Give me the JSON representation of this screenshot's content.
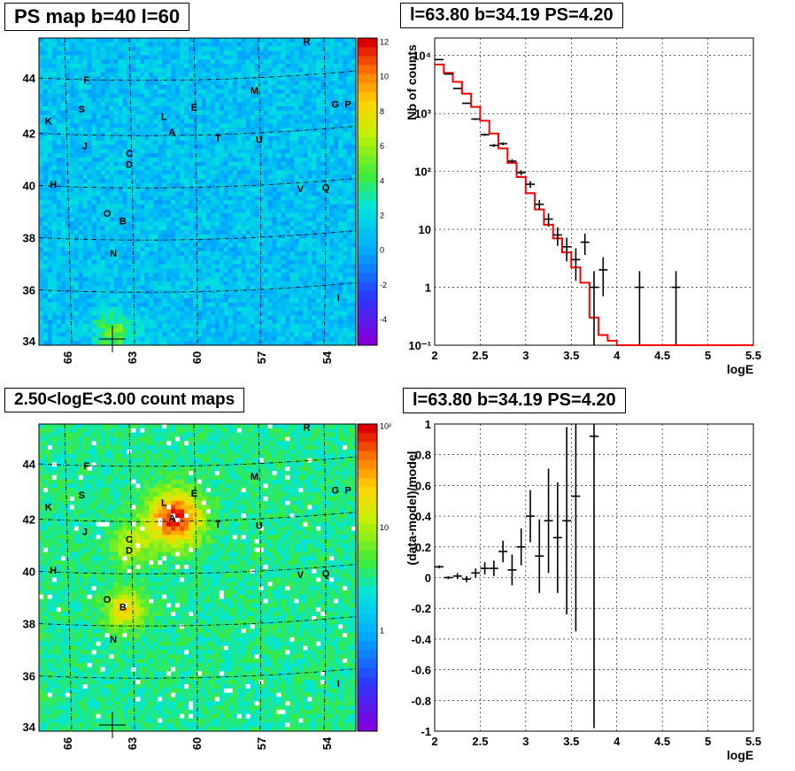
{
  "panels": {
    "map_title": "PS map b=40 l=60",
    "spec_title": "l=63.80 b=34.19 PS=4.20",
    "count_title": "2.50<logE<3.00 count maps",
    "resid_title": "l=63.80 b=34.19 PS=4.20"
  },
  "map_axes": {
    "x_ticks": [
      "66",
      "63",
      "60",
      "57",
      "54"
    ],
    "y_ticks": [
      "44",
      "42",
      "40",
      "38",
      "36",
      "34"
    ]
  },
  "source_labels": [
    "R",
    "F",
    "M",
    "S",
    "L",
    "E",
    "G",
    "P",
    "K",
    "A",
    "T",
    "U",
    "J",
    "C",
    "D",
    "H",
    "V",
    "Q",
    "O",
    "B",
    "N",
    "I"
  ],
  "colorbar_ps": [
    "12",
    "10",
    "8",
    "6",
    "4",
    "2",
    "0",
    "-2",
    "-4"
  ],
  "colorbar_count": [
    "10²",
    "10",
    "1"
  ],
  "colors": {
    "model_line": "#ff0000",
    "data": "#000000"
  },
  "chart_data": [
    {
      "type": "heatmap",
      "title": "PS map b=40 l=60",
      "xlabel": "",
      "ylabel": "",
      "x_ticks": [
        66,
        63,
        60,
        57,
        54
      ],
      "y_ticks": [
        44,
        42,
        40,
        38,
        36,
        34
      ],
      "zlim": [
        -5,
        12
      ],
      "sources": [
        "R",
        "F",
        "M",
        "S",
        "L",
        "E",
        "G",
        "P",
        "K",
        "A",
        "T",
        "U",
        "J",
        "C",
        "D",
        "H",
        "V",
        "Q",
        "O",
        "B",
        "N",
        "I"
      ]
    },
    {
      "type": "line",
      "title": "l=63.80 b=34.19 PS=4.20",
      "xlabel": "logE",
      "ylabel": "Nb of counts",
      "xlim": [
        2,
        5.5
      ],
      "ylim": [
        0.1,
        20000
      ],
      "yscale": "log",
      "x_ticks": [
        "2",
        "2.5",
        "3",
        "3.5",
        "4",
        "4.5",
        "5",
        "5.5"
      ],
      "y_ticks": [
        "10⁴",
        "10³",
        "10²",
        "10",
        "1",
        "10⁻¹"
      ],
      "grid": true,
      "series": [
        {
          "kind": "data",
          "x": [
            2.05,
            2.15,
            2.25,
            2.35,
            2.45,
            2.55,
            2.65,
            2.75,
            2.85,
            2.95,
            3.05,
            3.15,
            3.25,
            3.35,
            3.45,
            3.55,
            3.65,
            3.75,
            3.85,
            4.25,
            4.65
          ],
          "y": [
            8500,
            4800,
            2700,
            1500,
            800,
            430,
            280,
            300,
            150,
            95,
            60,
            27,
            15,
            8,
            5,
            3,
            6,
            1,
            2,
            1,
            1
          ],
          "yerr": [
            92,
            69,
            52,
            39,
            28,
            21,
            17,
            17,
            12,
            10,
            8,
            5.2,
            3.9,
            2.8,
            2.2,
            1.7,
            2.4,
            0.9,
            1.3,
            0.9,
            0.9
          ]
        },
        {
          "kind": "model",
          "bins": [
            2.0,
            2.1,
            2.2,
            2.3,
            2.4,
            2.5,
            2.6,
            2.7,
            2.8,
            2.9,
            3.0,
            3.1,
            3.2,
            3.3,
            3.4,
            3.5,
            3.6,
            3.7,
            3.8,
            3.9,
            4.0,
            5.5
          ],
          "values": [
            7000,
            5000,
            3500,
            2200,
            1300,
            750,
            450,
            250,
            140,
            80,
            42,
            22,
            12,
            7,
            4,
            2.2,
            1.2,
            0.3,
            0.15,
            0.12,
            0.1
          ]
        }
      ]
    },
    {
      "type": "heatmap",
      "title": "2.50<logE<3.00 count maps",
      "xlabel": "",
      "ylabel": "",
      "x_ticks": [
        66,
        63,
        60,
        57,
        54
      ],
      "y_ticks": [
        44,
        42,
        40,
        38,
        36,
        34
      ],
      "zscale": "log",
      "sources": [
        "R",
        "F",
        "M",
        "S",
        "L",
        "E",
        "G",
        "P",
        "K",
        "A",
        "T",
        "U",
        "J",
        "C",
        "D",
        "H",
        "V",
        "Q",
        "O",
        "B",
        "N",
        "I"
      ]
    },
    {
      "type": "scatter",
      "title": "l=63.80 b=34.19 PS=4.20",
      "xlabel": "logE",
      "ylabel": "(data-model)/model",
      "xlim": [
        2,
        5.5
      ],
      "ylim": [
        -1,
        1
      ],
      "x_ticks": [
        "2",
        "2.5",
        "3",
        "3.5",
        "4",
        "4.5",
        "5",
        "5.5"
      ],
      "y_ticks": [
        "1",
        "0.8",
        "0.6",
        "0.4",
        "0.2",
        "0",
        "-0.2",
        "-0.4",
        "-0.6",
        "-0.8",
        "-1"
      ],
      "grid": true,
      "x": [
        2.05,
        2.15,
        2.25,
        2.35,
        2.45,
        2.55,
        2.65,
        2.75,
        2.85,
        2.95,
        3.05,
        3.15,
        3.25,
        3.35,
        3.45,
        3.55,
        3.75
      ],
      "y": [
        0.07,
        0.0,
        0.01,
        -0.01,
        0.03,
        0.06,
        0.06,
        0.17,
        0.05,
        0.2,
        0.4,
        0.14,
        0.37,
        0.26,
        0.37,
        0.53,
        0.92
      ],
      "yerr": [
        0.01,
        0.01,
        0.02,
        0.02,
        0.03,
        0.04,
        0.05,
        0.07,
        0.1,
        0.12,
        0.17,
        0.24,
        0.34,
        0.36,
        0.61,
        0.88,
        1.9
      ]
    }
  ]
}
